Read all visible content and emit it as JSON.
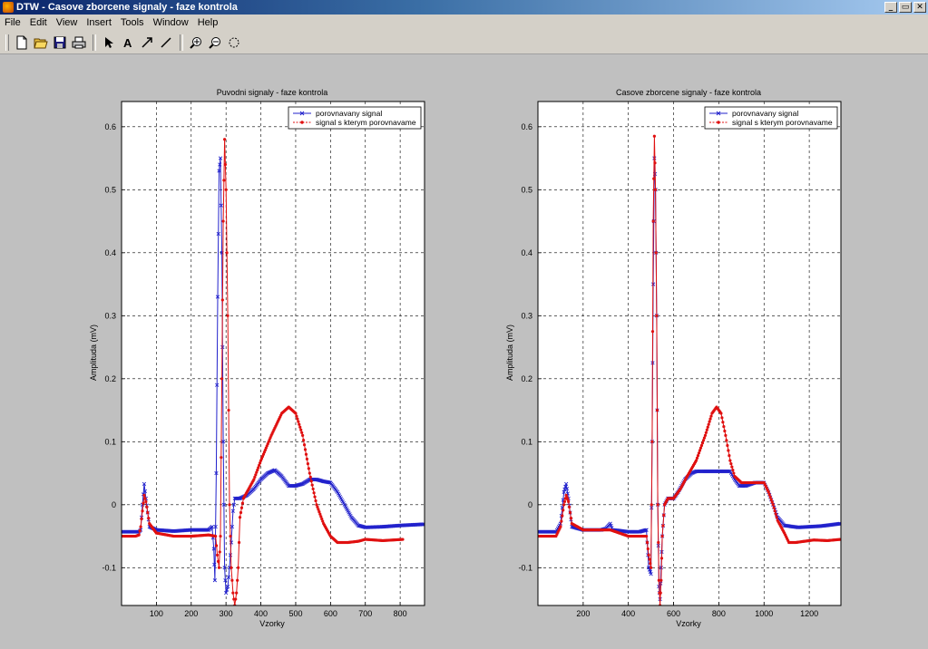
{
  "window": {
    "title": "DTW - Casove zborcene signaly - faze kontrola"
  },
  "menu": {
    "items": [
      {
        "label": "File"
      },
      {
        "label": "Edit"
      },
      {
        "label": "View"
      },
      {
        "label": "Insert"
      },
      {
        "label": "Tools"
      },
      {
        "label": "Window"
      },
      {
        "label": "Help"
      }
    ]
  },
  "toolbar": {
    "icons": [
      "new-file-icon",
      "open-folder-icon",
      "save-icon",
      "print-icon",
      "select-arrow-icon",
      "insert-text-icon",
      "insert-arrow-icon",
      "insert-line-icon",
      "zoom-in-icon",
      "zoom-out-icon",
      "rotate-3d-icon"
    ]
  },
  "colors": {
    "blue_series": "#2222cc",
    "red_series": "#e01010"
  },
  "chart_data": [
    {
      "type": "line",
      "title": "Puvodni signaly - faze kontrola",
      "xlabel": "Vzorky",
      "ylabel": "Amplituda (mV)",
      "xlim": [
        0,
        870
      ],
      "ylim": [
        -0.16,
        0.64
      ],
      "xticks": [
        100,
        200,
        300,
        400,
        500,
        600,
        700,
        800
      ],
      "yticks": [
        -0.1,
        0,
        0.1,
        0.2,
        0.3,
        0.4,
        0.5,
        0.6
      ],
      "grid": true,
      "legend_position": "top-right",
      "series": [
        {
          "name": "porovnavany signal",
          "marker": "x",
          "points": [
            [
              0,
              -0.043
            ],
            [
              50,
              -0.043
            ],
            [
              55,
              -0.04
            ],
            [
              60,
              0.0
            ],
            [
              65,
              0.033
            ],
            [
              70,
              0.01
            ],
            [
              80,
              -0.035
            ],
            [
              100,
              -0.04
            ],
            [
              150,
              -0.042
            ],
            [
              200,
              -0.04
            ],
            [
              250,
              -0.04
            ],
            [
              260,
              -0.035
            ],
            [
              265,
              -0.07
            ],
            [
              268,
              -0.12
            ],
            [
              272,
              0.05
            ],
            [
              276,
              0.33
            ],
            [
              280,
              0.53
            ],
            [
              284,
              0.55
            ],
            [
              288,
              0.4
            ],
            [
              292,
              0.1
            ],
            [
              296,
              -0.1
            ],
            [
              300,
              -0.14
            ],
            [
              305,
              -0.13
            ],
            [
              310,
              -0.1
            ],
            [
              315,
              -0.06
            ],
            [
              320,
              -0.01
            ],
            [
              325,
              0.01
            ],
            [
              340,
              0.01
            ],
            [
              360,
              0.015
            ],
            [
              380,
              0.025
            ],
            [
              400,
              0.04
            ],
            [
              420,
              0.05
            ],
            [
              440,
              0.055
            ],
            [
              460,
              0.045
            ],
            [
              480,
              0.03
            ],
            [
              500,
              0.03
            ],
            [
              520,
              0.033
            ],
            [
              540,
              0.04
            ],
            [
              560,
              0.04
            ],
            [
              580,
              0.037
            ],
            [
              600,
              0.035
            ],
            [
              620,
              0.02
            ],
            [
              640,
              0.0
            ],
            [
              660,
              -0.02
            ],
            [
              680,
              -0.033
            ],
            [
              700,
              -0.036
            ],
            [
              750,
              -0.035
            ],
            [
              800,
              -0.033
            ],
            [
              870,
              -0.031
            ]
          ]
        },
        {
          "name": "signal s kterym porovnavame",
          "marker": "dot",
          "points": [
            [
              0,
              -0.05
            ],
            [
              40,
              -0.05
            ],
            [
              50,
              -0.048
            ],
            [
              55,
              -0.035
            ],
            [
              60,
              -0.01
            ],
            [
              65,
              0.015
            ],
            [
              70,
              0.005
            ],
            [
              80,
              -0.03
            ],
            [
              100,
              -0.045
            ],
            [
              150,
              -0.05
            ],
            [
              200,
              -0.05
            ],
            [
              250,
              -0.048
            ],
            [
              270,
              -0.05
            ],
            [
              275,
              -0.08
            ],
            [
              280,
              -0.1
            ],
            [
              284,
              -0.05
            ],
            [
              288,
              0.2
            ],
            [
              292,
              0.45
            ],
            [
              296,
              0.58
            ],
            [
              300,
              0.5
            ],
            [
              305,
              0.3
            ],
            [
              310,
              0.0
            ],
            [
              315,
              -0.1
            ],
            [
              320,
              -0.14
            ],
            [
              325,
              -0.16
            ],
            [
              330,
              -0.14
            ],
            [
              335,
              -0.1
            ],
            [
              340,
              -0.02
            ],
            [
              350,
              0.01
            ],
            [
              380,
              0.04
            ],
            [
              400,
              0.07
            ],
            [
              430,
              0.11
            ],
            [
              460,
              0.145
            ],
            [
              480,
              0.155
            ],
            [
              500,
              0.145
            ],
            [
              520,
              0.11
            ],
            [
              540,
              0.05
            ],
            [
              560,
              0.0
            ],
            [
              580,
              -0.03
            ],
            [
              600,
              -0.05
            ],
            [
              620,
              -0.06
            ],
            [
              650,
              -0.06
            ],
            [
              680,
              -0.058
            ],
            [
              700,
              -0.055
            ],
            [
              750,
              -0.057
            ],
            [
              810,
              -0.055
            ]
          ]
        }
      ]
    },
    {
      "type": "line",
      "title": "Casove zborcene signaly - faze kontrola",
      "xlabel": "Vzorky",
      "ylabel": "Amplituda (mV)",
      "xlim": [
        0,
        1340
      ],
      "ylim": [
        -0.16,
        0.64
      ],
      "xticks": [
        200,
        400,
        600,
        800,
        1000,
        1200
      ],
      "yticks": [
        -0.1,
        0,
        0.1,
        0.2,
        0.3,
        0.4,
        0.5,
        0.6
      ],
      "grid": true,
      "legend_position": "top-right",
      "series": [
        {
          "name": "porovnavany signal",
          "marker": "x",
          "points": [
            [
              0,
              -0.043
            ],
            [
              80,
              -0.043
            ],
            [
              100,
              -0.03
            ],
            [
              115,
              0.02
            ],
            [
              125,
              0.033
            ],
            [
              135,
              0.01
            ],
            [
              150,
              -0.035
            ],
            [
              200,
              -0.04
            ],
            [
              280,
              -0.04
            ],
            [
              300,
              -0.038
            ],
            [
              320,
              -0.03
            ],
            [
              330,
              -0.04
            ],
            [
              400,
              -0.043
            ],
            [
              450,
              -0.043
            ],
            [
              480,
              -0.04
            ],
            [
              490,
              -0.1
            ],
            [
              500,
              -0.11
            ],
            [
              505,
              0.1
            ],
            [
              510,
              0.35
            ],
            [
              515,
              0.55
            ],
            [
              520,
              0.5
            ],
            [
              525,
              0.3
            ],
            [
              530,
              0.0
            ],
            [
              535,
              -0.13
            ],
            [
              540,
              -0.15
            ],
            [
              545,
              -0.1
            ],
            [
              550,
              -0.05
            ],
            [
              560,
              0.0
            ],
            [
              575,
              0.01
            ],
            [
              600,
              0.01
            ],
            [
              620,
              0.02
            ],
            [
              650,
              0.04
            ],
            [
              680,
              0.05
            ],
            [
              700,
              0.053
            ],
            [
              750,
              0.053
            ],
            [
              850,
              0.053
            ],
            [
              870,
              0.04
            ],
            [
              890,
              0.03
            ],
            [
              920,
              0.03
            ],
            [
              960,
              0.035
            ],
            [
              1000,
              0.035
            ],
            [
              1020,
              0.02
            ],
            [
              1040,
              0.0
            ],
            [
              1060,
              -0.02
            ],
            [
              1090,
              -0.033
            ],
            [
              1150,
              -0.036
            ],
            [
              1250,
              -0.034
            ],
            [
              1340,
              -0.03
            ]
          ]
        },
        {
          "name": "signal s kterym porovnavame",
          "marker": "dot",
          "points": [
            [
              0,
              -0.05
            ],
            [
              80,
              -0.05
            ],
            [
              100,
              -0.035
            ],
            [
              115,
              0.0
            ],
            [
              125,
              0.015
            ],
            [
              135,
              0.005
            ],
            [
              150,
              -0.03
            ],
            [
              200,
              -0.04
            ],
            [
              280,
              -0.04
            ],
            [
              320,
              -0.04
            ],
            [
              360,
              -0.045
            ],
            [
              400,
              -0.05
            ],
            [
              460,
              -0.05
            ],
            [
              480,
              -0.05
            ],
            [
              490,
              -0.08
            ],
            [
              500,
              -0.1
            ],
            [
              505,
              0.1
            ],
            [
              510,
              0.45
            ],
            [
              515,
              0.585
            ],
            [
              520,
              0.5
            ],
            [
              525,
              0.3
            ],
            [
              530,
              0.0
            ],
            [
              535,
              -0.12
            ],
            [
              540,
              -0.16
            ],
            [
              545,
              -0.12
            ],
            [
              550,
              -0.05
            ],
            [
              560,
              0.0
            ],
            [
              575,
              0.01
            ],
            [
              600,
              0.01
            ],
            [
              630,
              0.025
            ],
            [
              660,
              0.045
            ],
            [
              700,
              0.07
            ],
            [
              740,
              0.11
            ],
            [
              770,
              0.145
            ],
            [
              790,
              0.155
            ],
            [
              810,
              0.145
            ],
            [
              830,
              0.11
            ],
            [
              850,
              0.07
            ],
            [
              870,
              0.045
            ],
            [
              900,
              0.035
            ],
            [
              950,
              0.035
            ],
            [
              1000,
              0.035
            ],
            [
              1020,
              0.02
            ],
            [
              1040,
              0.0
            ],
            [
              1060,
              -0.025
            ],
            [
              1090,
              -0.045
            ],
            [
              1110,
              -0.06
            ],
            [
              1140,
              -0.06
            ],
            [
              1180,
              -0.058
            ],
            [
              1220,
              -0.056
            ],
            [
              1280,
              -0.057
            ],
            [
              1340,
              -0.055
            ]
          ]
        }
      ]
    }
  ]
}
